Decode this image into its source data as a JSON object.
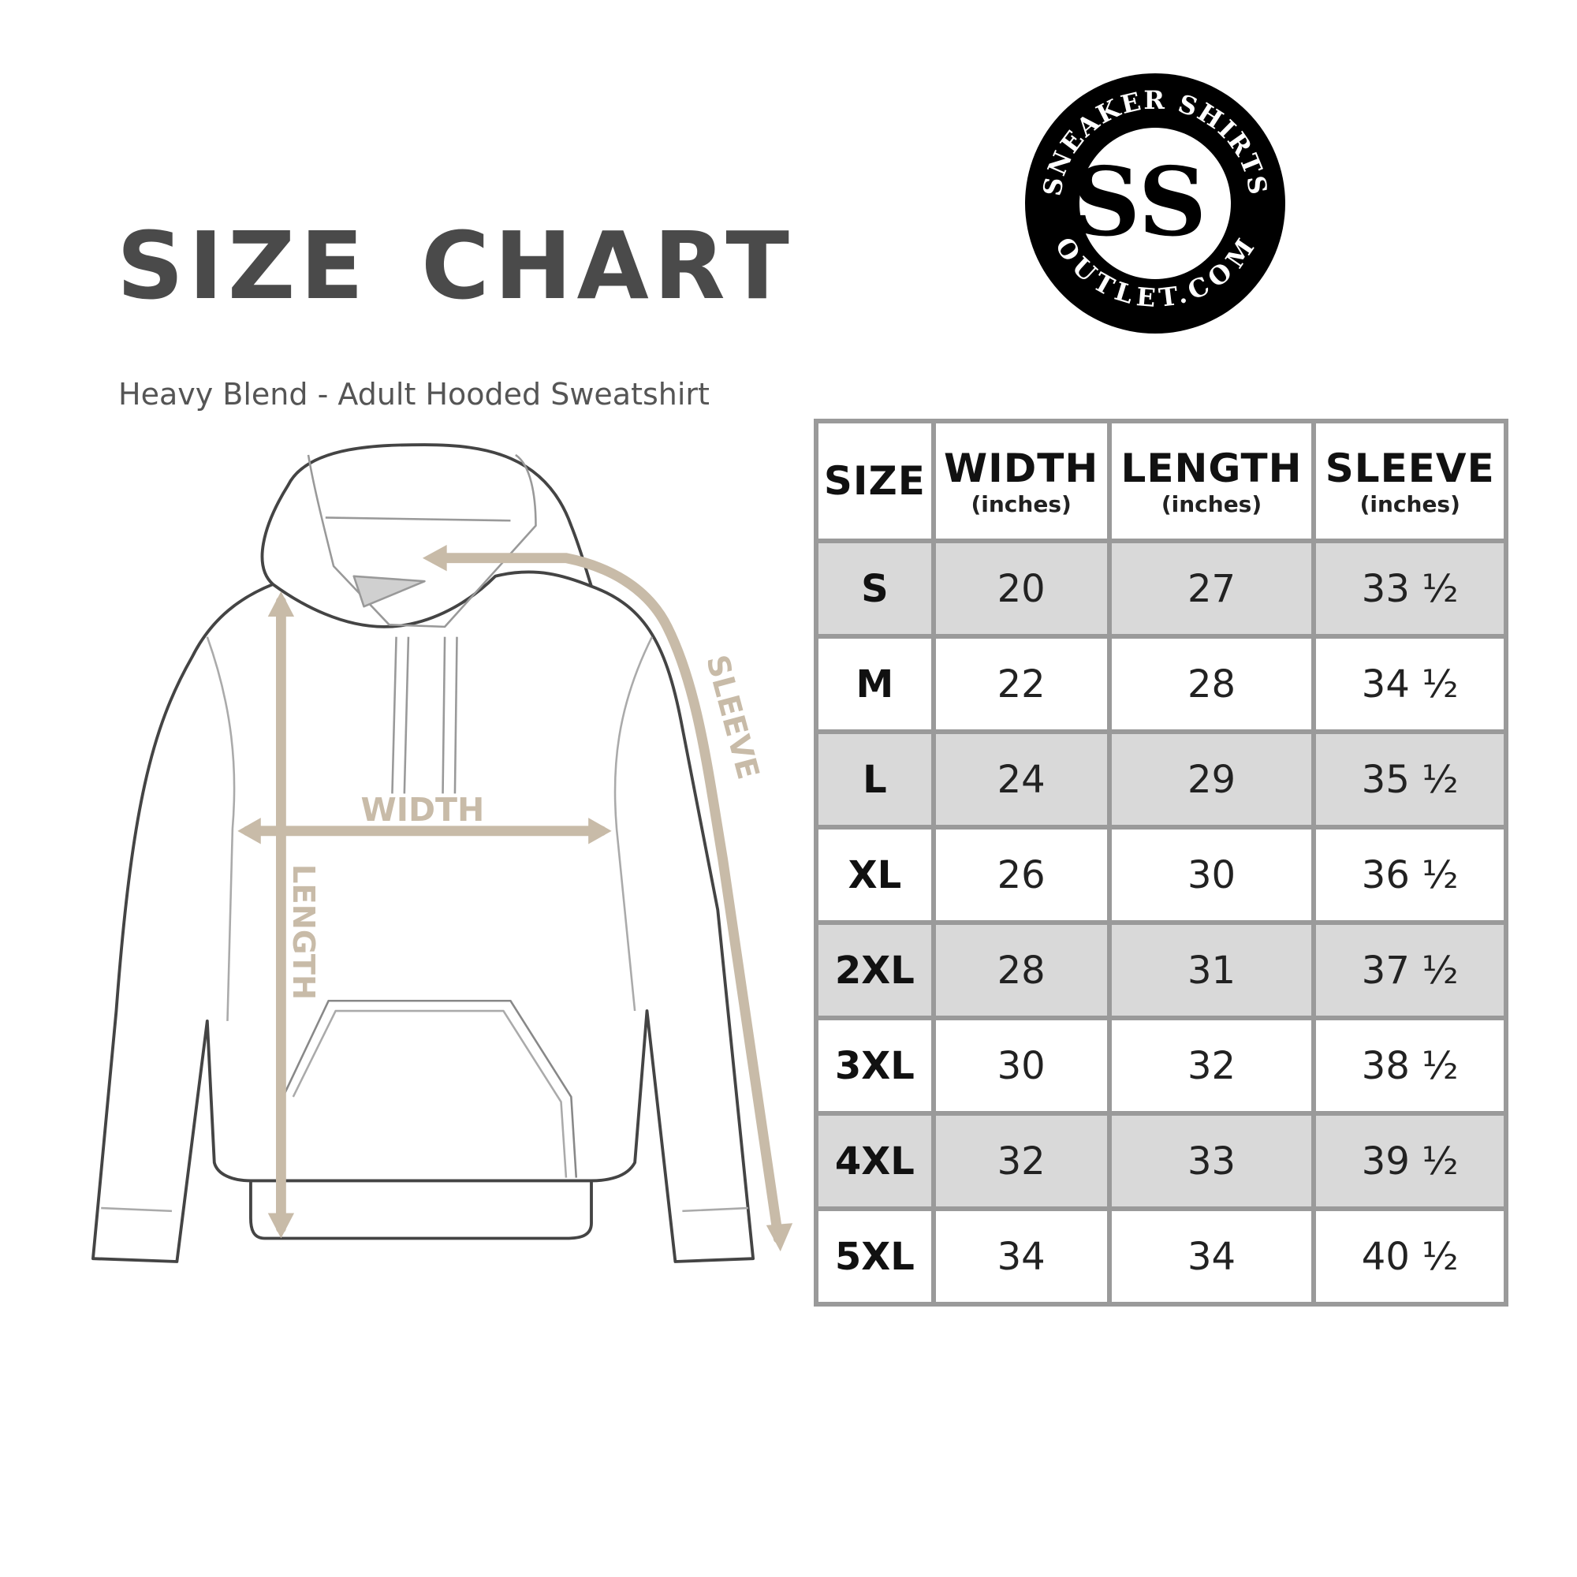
{
  "title": "SIZE CHART",
  "subtitle": "Heavy Blend - Adult Hooded Sweatshirt",
  "logo": {
    "top_text": "SNEAKER SHIRTS",
    "bottom_text": "OUTLET.COM",
    "monogram": "SS"
  },
  "diagram": {
    "width_label": "WIDTH",
    "length_label": "LENGTH",
    "sleeve_label": "SLEEVE",
    "arrow_color": "#c8bba8"
  },
  "table": {
    "headers": [
      {
        "label": "SIZE",
        "unit": ""
      },
      {
        "label": "WIDTH",
        "unit": "(inches)"
      },
      {
        "label": "LENGTH",
        "unit": "(inches)"
      },
      {
        "label": "SLEEVE",
        "unit": "(inches)"
      }
    ],
    "rows": [
      {
        "size": "S",
        "width": "20",
        "length": "27",
        "sleeve": "33 ½"
      },
      {
        "size": "M",
        "width": "22",
        "length": "28",
        "sleeve": "34 ½"
      },
      {
        "size": "L",
        "width": "24",
        "length": "29",
        "sleeve": "35 ½"
      },
      {
        "size": "XL",
        "width": "26",
        "length": "30",
        "sleeve": "36 ½"
      },
      {
        "size": "2XL",
        "width": "28",
        "length": "31",
        "sleeve": "37 ½"
      },
      {
        "size": "3XL",
        "width": "30",
        "length": "32",
        "sleeve": "38 ½"
      },
      {
        "size": "4XL",
        "width": "32",
        "length": "33",
        "sleeve": "39 ½"
      },
      {
        "size": "5XL",
        "width": "34",
        "length": "34",
        "sleeve": "40 ½"
      }
    ]
  }
}
